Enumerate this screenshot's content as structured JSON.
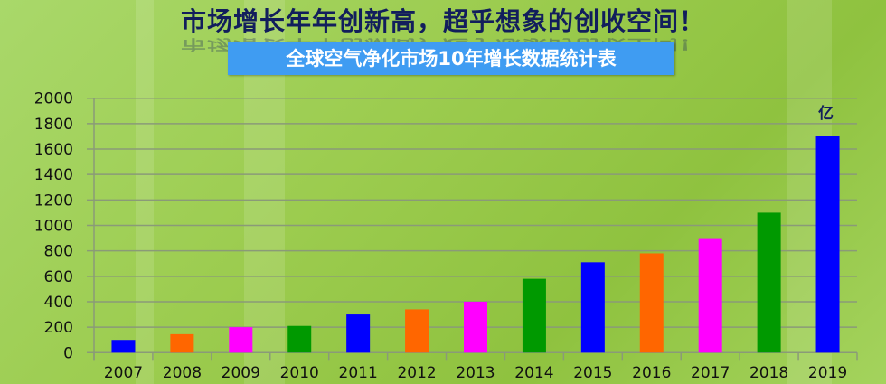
{
  "headline": "市场增长年年创新高，超乎想象的创收空间！",
  "chart_data": {
    "type": "bar",
    "title": "全球空气净化市场10年增长数据统计表",
    "unit_label": "亿",
    "categories": [
      "2007",
      "2008",
      "2009",
      "2010",
      "2011",
      "2012",
      "2013",
      "2014",
      "2015",
      "2016",
      "2017",
      "2018",
      "2019"
    ],
    "values": [
      100,
      145,
      200,
      210,
      300,
      340,
      400,
      580,
      710,
      780,
      900,
      1100,
      1700
    ],
    "colors": [
      "#0000ff",
      "#ff6600",
      "#ff00ff",
      "#009900",
      "#0000ff",
      "#ff6600",
      "#ff00ff",
      "#009900",
      "#0000ff",
      "#ff6600",
      "#ff00ff",
      "#009900",
      "#0000ff"
    ],
    "ylim": [
      0,
      2000
    ],
    "yticks": [
      0,
      200,
      400,
      600,
      800,
      1000,
      1200,
      1400,
      1600,
      1800,
      2000
    ],
    "grid": true,
    "xlabel": "",
    "ylabel": ""
  }
}
